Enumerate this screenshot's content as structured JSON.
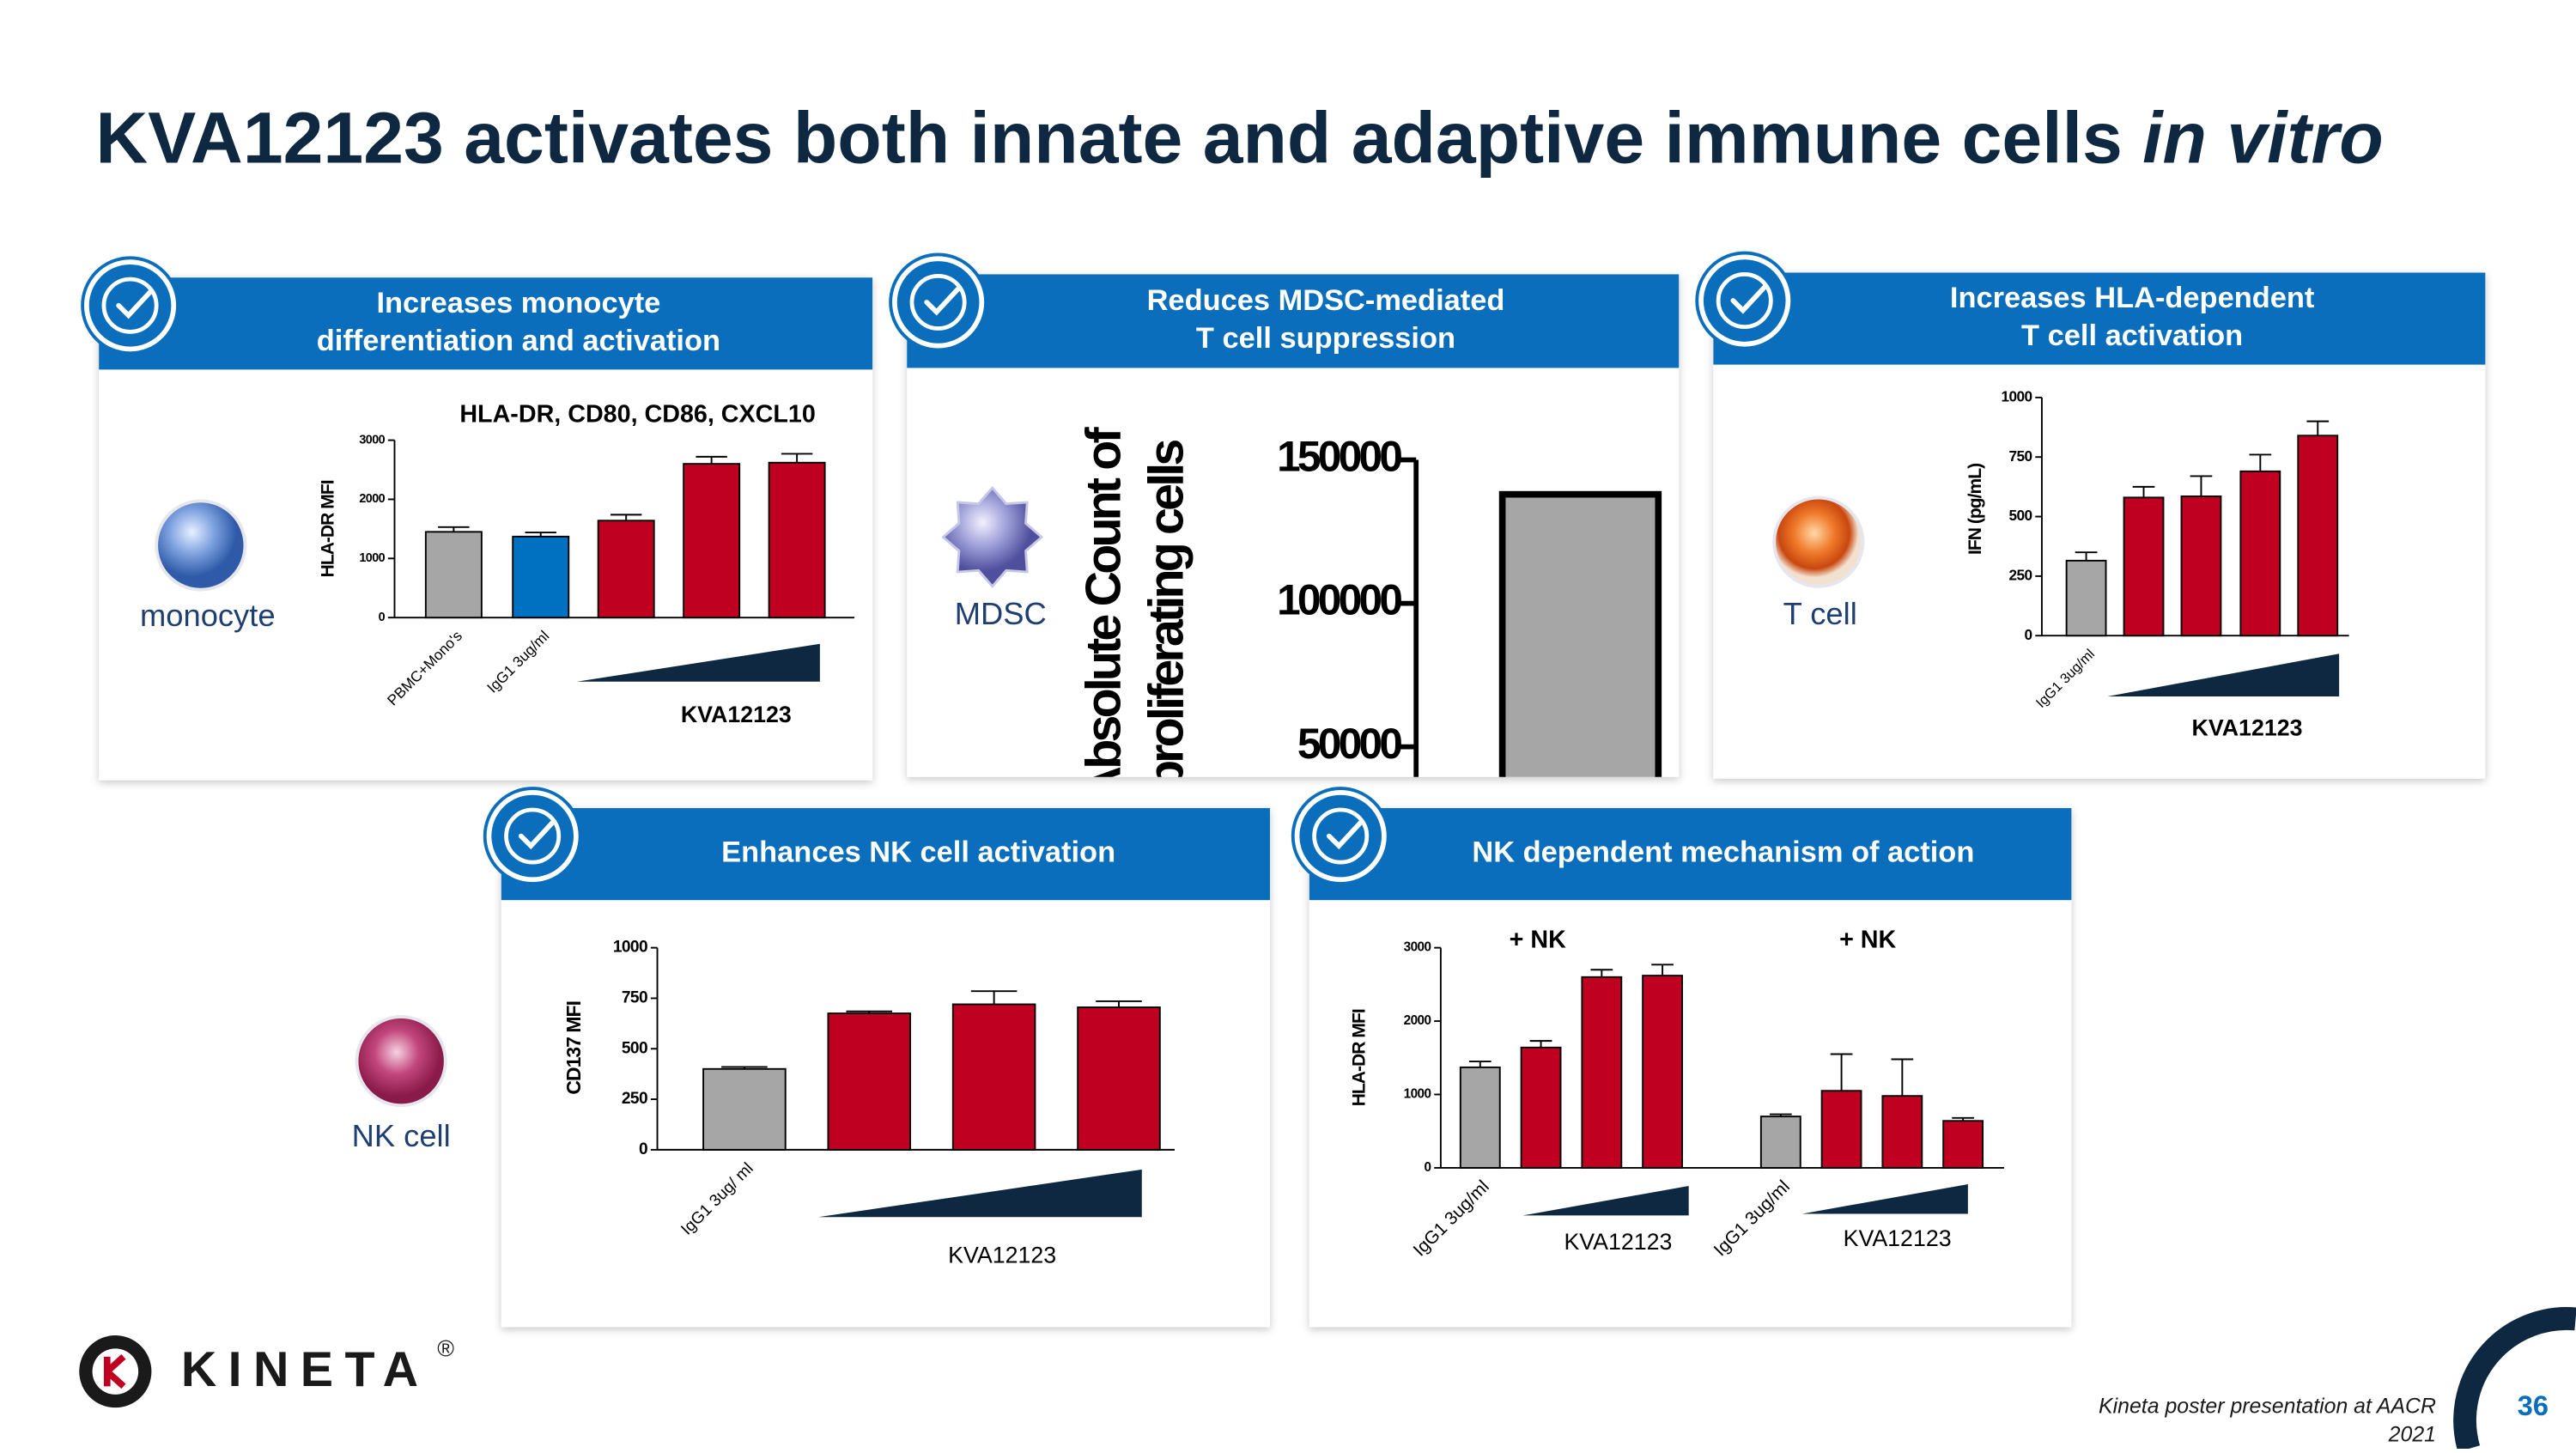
{
  "title": {
    "text": "KVA12123 activates both innate and adaptive immune cells",
    "emphasis": "in vitro"
  },
  "panels": [
    {
      "header": [
        "Increases monocyte",
        "differentiation and activation"
      ]
    },
    {
      "header": [
        "Reduces MDSC-mediated",
        "T cell suppression"
      ]
    },
    {
      "header": [
        "Increases HLA-dependent",
        "T cell activation"
      ]
    },
    {
      "header": [
        "Enhances NK cell activation"
      ]
    },
    {
      "header": [
        "NK dependent mechanism of action"
      ]
    }
  ],
  "cells": [
    "monocyte",
    "MDSC",
    "T cell",
    "NK cell"
  ],
  "chart_data": [
    {
      "type": "bar",
      "title": "HLA-DR, CD80, CD86, CXCL10",
      "ylabel": [
        "HLA-DR MFI"
      ],
      "categories": [
        "PBMC+Mono's",
        "IgG1 3ug/ml",
        null,
        null,
        null
      ],
      "values": [
        1450,
        1370,
        1640,
        2600,
        2620
      ],
      "errors": [
        80,
        70,
        100,
        120,
        150
      ],
      "colors": [
        "#a6a6a6",
        "#0070c0",
        "#c00020",
        "#c00020",
        "#c00020"
      ],
      "ylim": [
        0,
        3000
      ],
      "yticks": [
        0,
        1000,
        2000,
        3000
      ],
      "annotations": [
        "KVA12123"
      ]
    },
    {
      "type": "bar",
      "ylabel": [
        "Absolute Count of",
        "proliferating cells"
      ],
      "values": [
        138000
      ],
      "colors": [
        "#a6a6a6"
      ],
      "ylim": [
        0,
        150000
      ],
      "yticks": [
        50000,
        100000,
        150000
      ]
    },
    {
      "type": "bar",
      "ylabel": [
        "IFN (pg/mL)"
      ],
      "categories": [
        "IgG1 3ug/ml",
        null,
        null,
        null,
        null
      ],
      "values": [
        315,
        580,
        585,
        690,
        840
      ],
      "errors": [
        35,
        45,
        85,
        70,
        60
      ],
      "colors": [
        "#a6a6a6",
        "#c00020",
        "#c00020",
        "#c00020",
        "#c00020"
      ],
      "ylim": [
        0,
        1000
      ],
      "yticks": [
        0,
        250,
        500,
        750,
        1000
      ],
      "annotations": [
        "KVA12123"
      ]
    },
    {
      "type": "bar",
      "ylabel": [
        "CD137 MFI"
      ],
      "categories": [
        "IgG1 3ug/ ml",
        null,
        null,
        null
      ],
      "values": [
        400,
        675,
        720,
        705
      ],
      "errors": [
        10,
        10,
        65,
        30
      ],
      "colors": [
        "#a6a6a6",
        "#c00020",
        "#c00020",
        "#c00020"
      ],
      "ylim": [
        0,
        1000
      ],
      "yticks": [
        0,
        250,
        500,
        750,
        1000
      ],
      "annotations": [
        "KVA12123"
      ]
    },
    {
      "type": "bar",
      "ylabel": [
        "HLA-DR MFI"
      ],
      "categories": [
        "IgG1 3ug/ml",
        null,
        null,
        null,
        "IgG1 3ug/ml",
        null,
        null,
        null
      ],
      "values": [
        1370,
        1640,
        2600,
        2620,
        700,
        1050,
        980,
        640
      ],
      "errors": [
        80,
        90,
        100,
        150,
        30,
        500,
        500,
        40
      ],
      "colors": [
        "#a6a6a6",
        "#c00020",
        "#c00020",
        "#c00020",
        "#a6a6a6",
        "#c00020",
        "#c00020",
        "#c00020"
      ],
      "ylim": [
        0,
        3000
      ],
      "yticks": [
        0,
        1000,
        2000,
        3000
      ],
      "annotations": [
        "+ NK",
        "+ NK",
        "KVA12123",
        "KVA12123"
      ]
    }
  ],
  "logo": {
    "text": "KINETA",
    "mark": "®"
  },
  "footer": {
    "source": [
      "Kineta poster presentation at AACR",
      "2021"
    ],
    "page": "36"
  }
}
